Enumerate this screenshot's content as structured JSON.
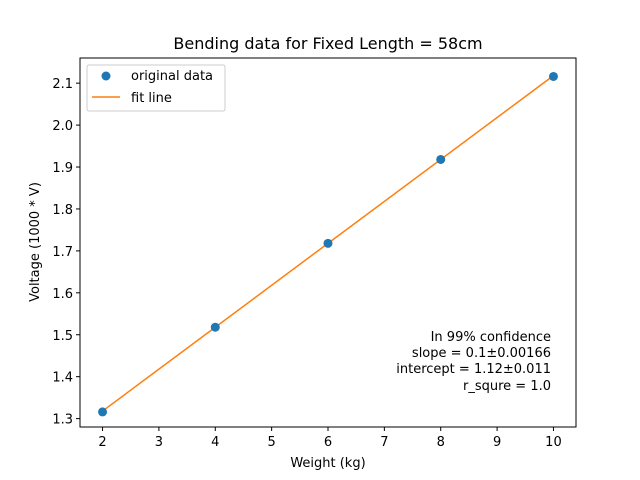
{
  "chart_data": {
    "type": "line",
    "title": "Bending data for Fixed Length = 58cm",
    "xlabel": "Weight (kg)",
    "ylabel": "Voltage (1000 * V)",
    "xlim": [
      1.6,
      10.4
    ],
    "ylim": [
      1.28,
      2.16
    ],
    "xticks": [
      2,
      3,
      4,
      5,
      6,
      7,
      8,
      9,
      10
    ],
    "yticks": [
      1.3,
      1.4,
      1.5,
      1.6,
      1.7,
      1.8,
      1.9,
      2.0,
      2.1
    ],
    "ytick_labels": [
      "1.3",
      "1.4",
      "1.5",
      "1.6",
      "1.7",
      "1.8",
      "1.9",
      "2.0",
      "2.1"
    ],
    "grid": false,
    "legend_position": "upper-left",
    "series": [
      {
        "name": "original data",
        "style": "markers",
        "color": "#1f77b4",
        "x": [
          2,
          4,
          6,
          8,
          10
        ],
        "y": [
          1.316,
          1.518,
          1.718,
          1.918,
          2.116
        ]
      },
      {
        "name": "fit line",
        "style": "line",
        "color": "#ff7f0e",
        "x": [
          2,
          10
        ],
        "y": [
          1.318,
          2.118
        ]
      }
    ],
    "annotation_lines": [
      "In 99% confidence",
      "slope = 0.1±0.00166",
      "intercept = 1.12±0.011",
      "r_squre = 1.0"
    ]
  }
}
